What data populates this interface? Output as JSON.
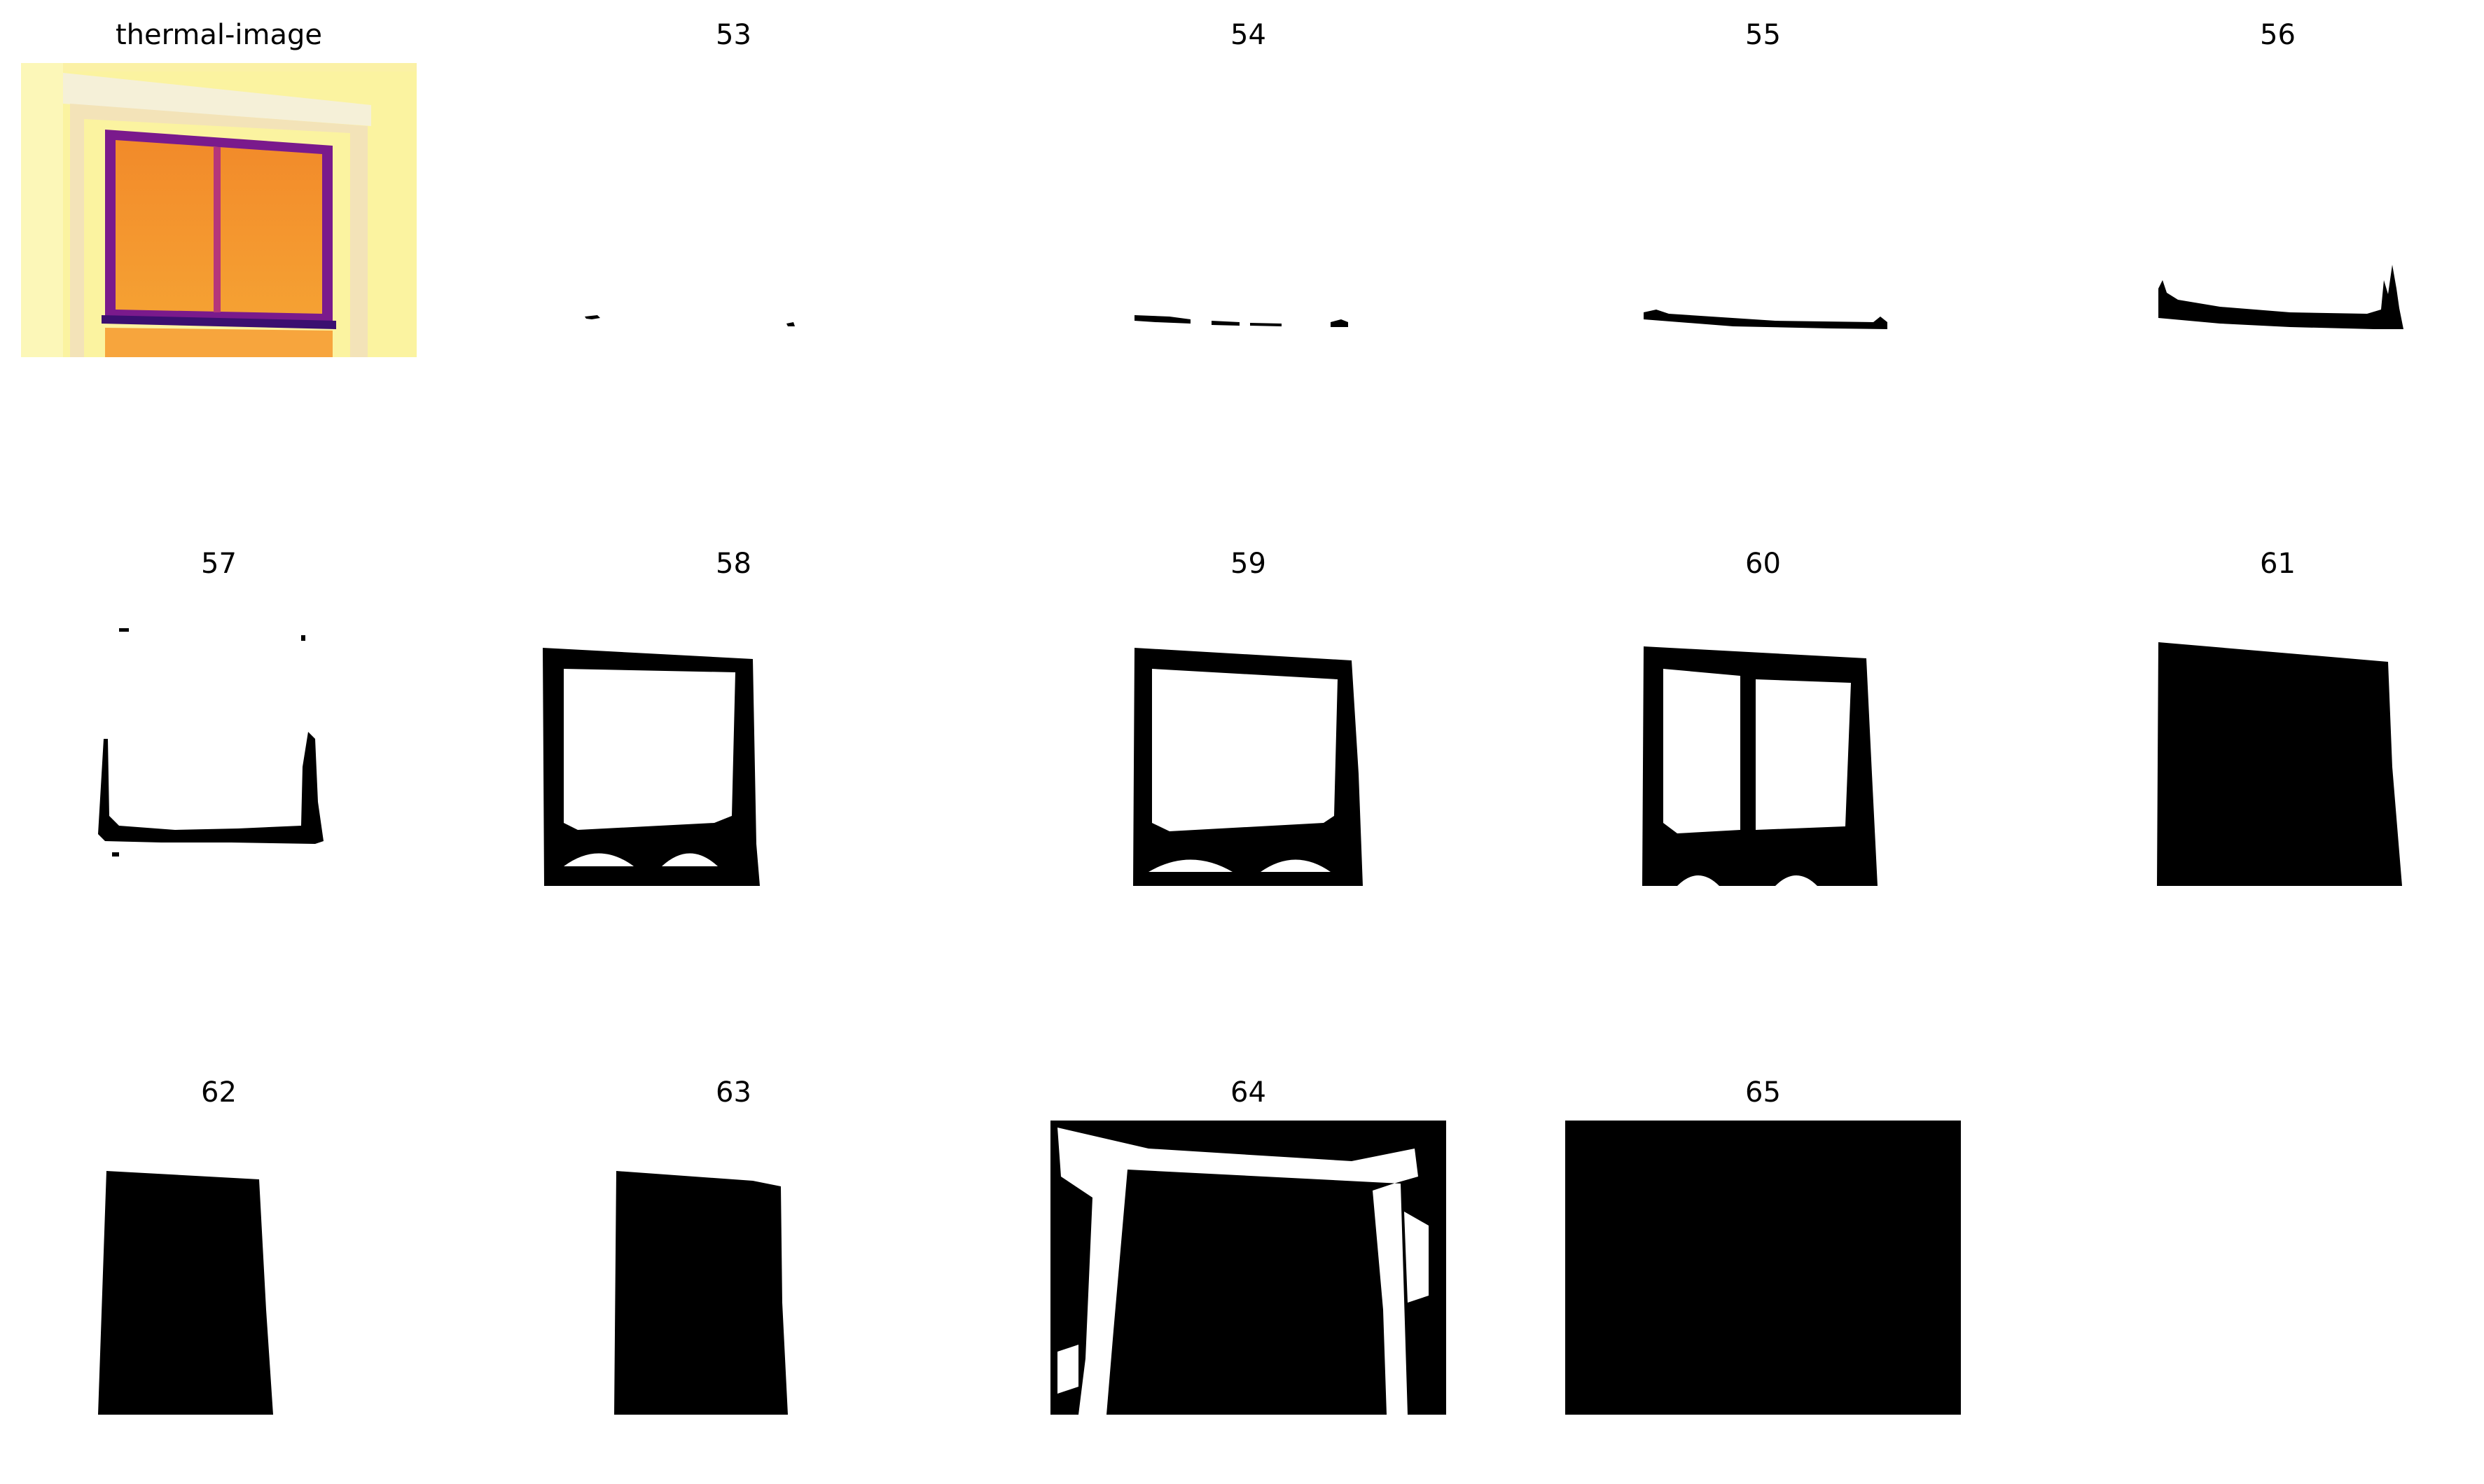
{
  "panels": [
    {
      "title": "thermal-image",
      "kind": "thermal"
    },
    {
      "title": "53",
      "kind": "mask53"
    },
    {
      "title": "54",
      "kind": "mask54"
    },
    {
      "title": "55",
      "kind": "mask55"
    },
    {
      "title": "56",
      "kind": "mask56"
    },
    {
      "title": "57",
      "kind": "mask57"
    },
    {
      "title": "58",
      "kind": "mask58"
    },
    {
      "title": "59",
      "kind": "mask59"
    },
    {
      "title": "60",
      "kind": "mask60"
    },
    {
      "title": "61",
      "kind": "mask61"
    },
    {
      "title": "62",
      "kind": "mask62"
    },
    {
      "title": "63",
      "kind": "mask63"
    },
    {
      "title": "64",
      "kind": "mask64"
    },
    {
      "title": "65",
      "kind": "mask65"
    }
  ],
  "colors": {
    "background": "#ffffff",
    "mask": "#000000",
    "thermal_hot": "#fbf3a0",
    "thermal_warm": "#f7d66a",
    "thermal_frame": "#f5f0d8",
    "thermal_glass": "#f59a2c",
    "thermal_edge": "#7a1a8c",
    "thermal_dark": "#3b0f70"
  }
}
